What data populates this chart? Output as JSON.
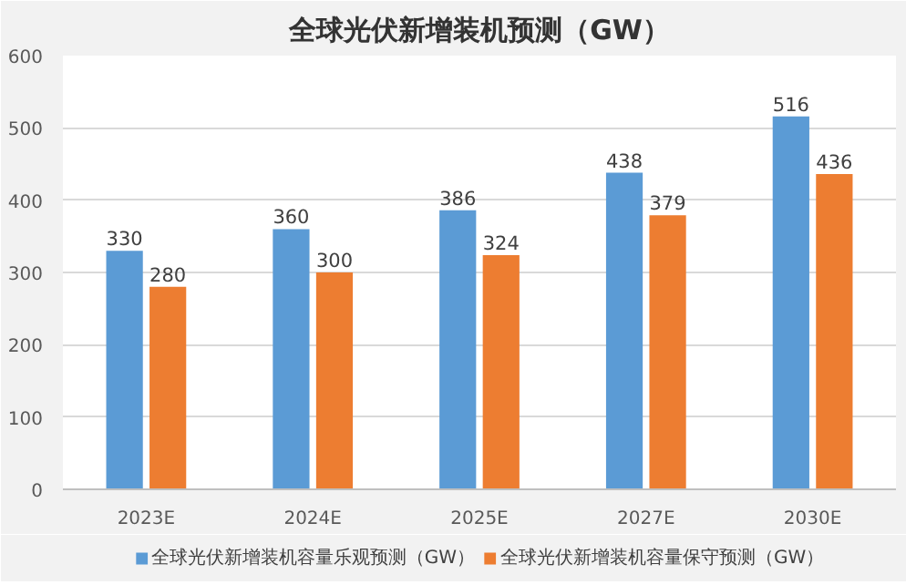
{
  "chart_data": {
    "type": "bar",
    "title": "全球光伏新增装机预测（GW）",
    "categories": [
      "2023E",
      "2024E",
      "2025E",
      "2027E",
      "2030E"
    ],
    "series": [
      {
        "name": "全球光伏新增装机容量乐观预测（GW）",
        "color": "#5b9bd5",
        "values": [
          330,
          360,
          386,
          438,
          516
        ]
      },
      {
        "name": "全球光伏新增装机容量保守预测（GW）",
        "color": "#ed7d31",
        "values": [
          280,
          300,
          324,
          379,
          436
        ]
      }
    ],
    "ylim": [
      0,
      600
    ],
    "yticks": [
      0,
      100,
      200,
      300,
      400,
      500,
      600
    ],
    "grid": "y",
    "legend": "bottom",
    "data_labels": true
  }
}
